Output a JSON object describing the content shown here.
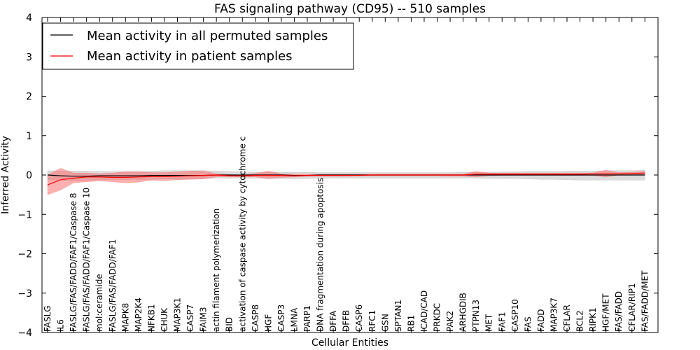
{
  "chart_data": {
    "type": "line",
    "title": "FAS signaling pathway (CD95) -- 510 samples",
    "xlabel": "Cellular Entities",
    "ylabel": "Inferred Activity",
    "ylim": [
      -4,
      4
    ],
    "yticks": [
      4,
      3,
      2,
      1,
      0,
      -1,
      -2,
      -3,
      -4
    ],
    "ytick_labels": [
      "4",
      "3",
      "2",
      "1",
      "0",
      "−1",
      "−2",
      "−3",
      "−4"
    ],
    "grid": false,
    "legend_position": "top-left",
    "categories": [
      "FASLG",
      "IL6",
      "FASLG/FAS/FADD/FAF1/Caspase 8",
      "FASLG/FAS/FADD/FAF1/Caspase 10",
      "mol:ceramide",
      "FASLG/FAS/FADD/FAF1",
      "MAPK8",
      "MAP2K4",
      "NFKB1",
      "CHUK",
      "MAP3K1",
      "CASP7",
      "FAIM3",
      "actin filament polymerization",
      "BID",
      "activation of caspase activity by cytochrome c",
      "CASP8",
      "HGF",
      "CASP3",
      "LMNA",
      "PARP1",
      "DNA fragmentation during apoptosis",
      "DFFA",
      "DFFB",
      "CASP6",
      "RFC1",
      "GSN",
      "SPTAN1",
      "RB1",
      "ICAD/CAD",
      "PRKDC",
      "PAK2",
      "ARHGDIB",
      "PTPN13",
      "MET",
      "FAF1",
      "CASP10",
      "FAS",
      "FADD",
      "MAP3K7",
      "CFLAR",
      "BCL2",
      "RIPK1",
      "HGF/MET",
      "FAS/FADD",
      "CFLAR/RIP1",
      "FAS/FADD/MET"
    ],
    "series": [
      {
        "name": "Mean activity in all permuted samples",
        "color": "#000000",
        "band_color": "#b0b0b0",
        "values": [
          0.0,
          -0.02,
          -0.03,
          -0.03,
          -0.02,
          -0.02,
          -0.02,
          -0.02,
          -0.01,
          -0.01,
          -0.01,
          -0.01,
          -0.01,
          0.0,
          0.0,
          0.0,
          0.0,
          0.0,
          0.0,
          -0.01,
          -0.01,
          0.0,
          0.0,
          0.0,
          0.0,
          0.0,
          0.0,
          0.0,
          0.0,
          0.0,
          0.0,
          0.0,
          0.0,
          0.0,
          0.0,
          0.0,
          0.0,
          0.0,
          0.0,
          0.0,
          0.0,
          0.0,
          0.0,
          0.0,
          0.0,
          0.0,
          0.0
        ],
        "lower": [
          -0.12,
          -0.13,
          -0.14,
          -0.14,
          -0.12,
          -0.12,
          -0.12,
          -0.12,
          -0.11,
          -0.1,
          -0.1,
          -0.1,
          -0.09,
          -0.08,
          -0.08,
          -0.08,
          -0.08,
          -0.09,
          -0.09,
          -0.1,
          -0.09,
          -0.08,
          -0.08,
          -0.08,
          -0.08,
          -0.08,
          -0.08,
          -0.08,
          -0.08,
          -0.08,
          -0.08,
          -0.08,
          -0.08,
          -0.08,
          -0.09,
          -0.09,
          -0.09,
          -0.1,
          -0.11,
          -0.11,
          -0.12,
          -0.13,
          -0.13,
          -0.13,
          -0.13,
          -0.13,
          -0.13
        ],
        "upper": [
          0.11,
          0.1,
          0.1,
          0.1,
          0.09,
          0.09,
          0.09,
          0.09,
          0.1,
          0.11,
          0.11,
          0.11,
          0.11,
          0.1,
          0.09,
          0.08,
          0.07,
          0.07,
          0.07,
          0.07,
          0.07,
          0.06,
          0.06,
          0.06,
          0.06,
          0.06,
          0.06,
          0.06,
          0.06,
          0.06,
          0.06,
          0.06,
          0.07,
          0.07,
          0.07,
          0.08,
          0.08,
          0.09,
          0.09,
          0.09,
          0.1,
          0.1,
          0.1,
          0.11,
          0.11,
          0.11,
          0.12
        ]
      },
      {
        "name": "Mean activity in patient samples",
        "color": "#ff0000",
        "band_color": "#ff6060",
        "values": [
          -0.25,
          -0.12,
          -0.08,
          -0.05,
          -0.05,
          -0.06,
          -0.06,
          -0.05,
          -0.04,
          -0.04,
          -0.03,
          -0.02,
          -0.01,
          0.0,
          -0.02,
          -0.02,
          -0.01,
          -0.01,
          -0.01,
          -0.02,
          -0.01,
          -0.01,
          -0.01,
          -0.01,
          -0.01,
          0.0,
          0.0,
          0.0,
          0.0,
          0.0,
          0.0,
          0.0,
          0.0,
          0.02,
          0.02,
          0.02,
          0.02,
          0.02,
          0.02,
          0.02,
          0.02,
          0.02,
          0.03,
          0.03,
          0.03,
          0.04,
          0.05
        ],
        "lower": [
          -0.5,
          -0.38,
          -0.2,
          -0.17,
          -0.15,
          -0.17,
          -0.2,
          -0.18,
          -0.13,
          -0.14,
          -0.12,
          -0.11,
          -0.1,
          -0.05,
          -0.04,
          -0.05,
          -0.05,
          -0.09,
          -0.06,
          -0.05,
          -0.03,
          -0.03,
          -0.03,
          -0.03,
          -0.02,
          -0.02,
          -0.02,
          -0.02,
          -0.02,
          -0.02,
          -0.02,
          -0.03,
          -0.03,
          -0.05,
          -0.02,
          -0.01,
          -0.01,
          -0.01,
          -0.01,
          -0.01,
          -0.01,
          -0.01,
          -0.01,
          -0.05,
          0.0,
          0.0,
          0.01
        ],
        "upper": [
          0.0,
          0.17,
          0.05,
          0.05,
          0.03,
          0.05,
          0.08,
          0.08,
          0.06,
          0.06,
          0.08,
          0.1,
          0.1,
          0.03,
          0.01,
          0.0,
          0.04,
          0.1,
          0.03,
          0.02,
          0.02,
          0.02,
          0.02,
          0.02,
          0.02,
          0.02,
          0.02,
          0.02,
          0.02,
          0.02,
          0.02,
          0.02,
          0.02,
          0.09,
          0.05,
          0.05,
          0.05,
          0.05,
          0.05,
          0.05,
          0.05,
          0.05,
          0.05,
          0.12,
          0.06,
          0.07,
          0.09
        ]
      }
    ]
  }
}
